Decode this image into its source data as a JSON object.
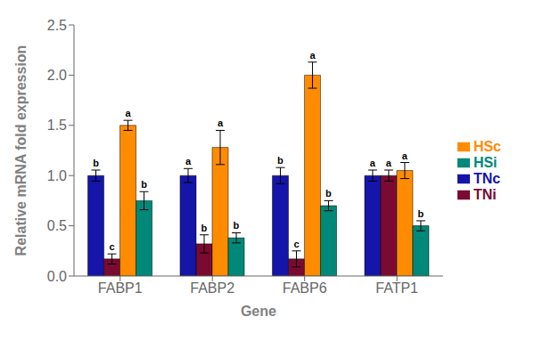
{
  "chart_data": {
    "type": "bar",
    "xlabel": "Gene",
    "ylabel": "Relative mRNA fold expression",
    "categories": [
      "FABP1",
      "FABP2",
      "FABP6",
      "FATP1"
    ],
    "series": [
      {
        "name": "TNc",
        "color": "#1515aa",
        "values": [
          1.0,
          1.0,
          1.0,
          1.0
        ],
        "errors": [
          0.055,
          0.07,
          0.08,
          0.055
        ],
        "letters": [
          "b",
          "a",
          "b",
          "a"
        ]
      },
      {
        "name": "TNi",
        "color": "#7b0a32",
        "values": [
          0.17,
          0.32,
          0.17,
          1.0
        ],
        "errors": [
          0.05,
          0.09,
          0.08,
          0.055
        ],
        "letters": [
          "c",
          "b",
          "c",
          "a"
        ]
      },
      {
        "name": "HSc",
        "color": "#ff8c00",
        "values": [
          1.5,
          1.28,
          2.0,
          1.05
        ],
        "errors": [
          0.05,
          0.17,
          0.13,
          0.08
        ],
        "letters": [
          "a",
          "a",
          "a",
          "a"
        ]
      },
      {
        "name": "HSi",
        "color": "#008878",
        "values": [
          0.75,
          0.38,
          0.7,
          0.5
        ],
        "errors": [
          0.09,
          0.05,
          0.05,
          0.05
        ],
        "letters": [
          "b",
          "b",
          "b",
          "b"
        ]
      }
    ],
    "ylim": [
      0.0,
      2.5
    ],
    "yticks": [
      {
        "value": 0.0,
        "label": "0.0"
      },
      {
        "value": 0.5,
        "label": "0.5"
      },
      {
        "value": 1.0,
        "label": "1.0"
      },
      {
        "value": 1.5,
        "label": "1.5"
      },
      {
        "value": 2.0,
        "label": "2.0"
      },
      {
        "value": 2.5,
        "label": "2.5"
      }
    ],
    "grid": false,
    "legend": "right"
  }
}
